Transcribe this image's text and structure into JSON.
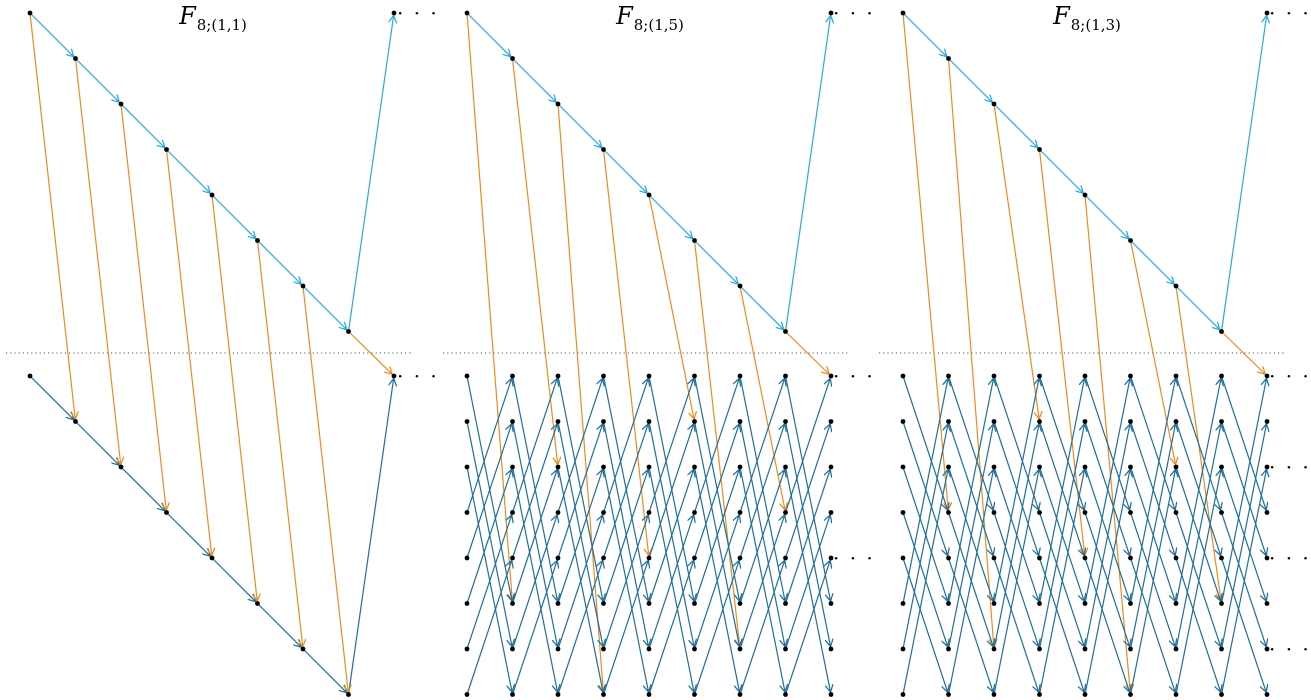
{
  "panels": [
    {
      "title_main": "F",
      "title_sub": "8;(1,1)",
      "type": "11"
    },
    {
      "title_main": "F",
      "title_sub": "8;(1,5)",
      "type": "15"
    },
    {
      "title_main": "F",
      "title_sub": "8;(1,3)",
      "type": "13"
    }
  ],
  "ellipsis": "· · ·",
  "colors": {
    "top_chain": "#29a9df",
    "bottom_chain": "#1f6f9a",
    "cross_edge": "#f08a1e",
    "separator": "#555555",
    "node": "#000000"
  }
}
